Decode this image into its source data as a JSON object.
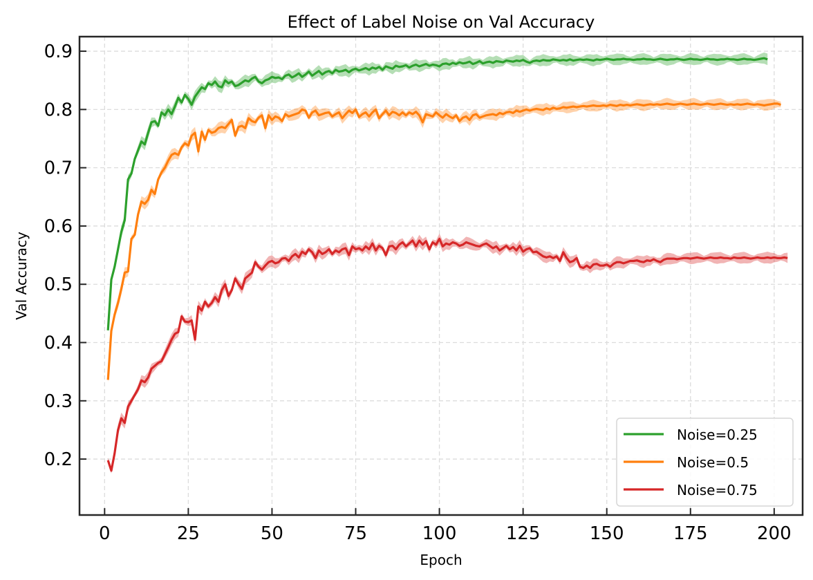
{
  "chart_data": {
    "type": "line",
    "title": "Effect of Label Noise on Val Accuracy",
    "xlabel": "Epoch",
    "ylabel": "Val Accuracy",
    "xlim": [
      -7.5,
      208.5
    ],
    "ylim": [
      0.104,
      0.925
    ],
    "xticks": [
      0,
      25,
      50,
      75,
      100,
      125,
      150,
      175,
      200
    ],
    "xtick_labels": [
      "0",
      "25",
      "50",
      "75",
      "100",
      "125",
      "150",
      "175",
      "200"
    ],
    "yticks": [
      0.2,
      0.3,
      0.4,
      0.5,
      0.6,
      0.7,
      0.8,
      0.9
    ],
    "ytick_labels": [
      "0.2",
      "0.3",
      "0.4",
      "0.5",
      "0.6",
      "0.7",
      "0.8",
      "0.9"
    ],
    "grid": true,
    "legend_position": "bottom-right",
    "x_start": 1,
    "x_step": 1,
    "series": [
      {
        "name": "Noise=0.25",
        "color": "#2ca02c",
        "values": [
          0.421,
          0.508,
          0.53,
          0.56,
          0.59,
          0.61,
          0.68,
          0.69,
          0.715,
          0.73,
          0.745,
          0.74,
          0.76,
          0.778,
          0.78,
          0.772,
          0.795,
          0.79,
          0.8,
          0.792,
          0.805,
          0.82,
          0.812,
          0.825,
          0.818,
          0.808,
          0.822,
          0.83,
          0.838,
          0.835,
          0.845,
          0.842,
          0.848,
          0.84,
          0.838,
          0.85,
          0.845,
          0.848,
          0.84,
          0.842,
          0.846,
          0.85,
          0.848,
          0.853,
          0.856,
          0.848,
          0.845,
          0.85,
          0.852,
          0.856,
          0.854,
          0.855,
          0.852,
          0.858,
          0.86,
          0.855,
          0.858,
          0.862,
          0.856,
          0.86,
          0.865,
          0.858,
          0.862,
          0.866,
          0.86,
          0.864,
          0.866,
          0.862,
          0.868,
          0.865,
          0.866,
          0.868,
          0.864,
          0.868,
          0.87,
          0.867,
          0.869,
          0.871,
          0.868,
          0.872,
          0.87,
          0.873,
          0.868,
          0.874,
          0.872,
          0.87,
          0.875,
          0.873,
          0.874,
          0.876,
          0.872,
          0.875,
          0.877,
          0.874,
          0.876,
          0.878,
          0.875,
          0.877,
          0.876,
          0.874,
          0.878,
          0.879,
          0.877,
          0.88,
          0.878,
          0.881,
          0.879,
          0.88,
          0.882,
          0.878,
          0.88,
          0.883,
          0.879,
          0.881,
          0.882,
          0.88,
          0.883,
          0.882,
          0.881,
          0.884,
          0.883,
          0.882,
          0.884,
          0.883,
          0.885,
          0.882,
          0.88,
          0.883,
          0.884,
          0.883,
          0.885,
          0.884,
          0.884,
          0.886,
          0.885,
          0.884,
          0.885,
          0.884,
          0.886,
          0.884,
          0.885,
          0.886,
          0.885,
          0.886,
          0.885,
          0.884,
          0.886,
          0.885,
          0.886,
          0.887,
          0.886,
          0.885,
          0.886,
          0.886,
          0.887,
          0.886,
          0.886,
          0.885,
          0.886,
          0.886,
          0.887,
          0.886,
          0.886,
          0.885,
          0.886,
          0.887,
          0.886,
          0.885,
          0.886,
          0.886,
          0.887,
          0.886,
          0.885,
          0.886,
          0.887,
          0.886,
          0.886,
          0.885,
          0.886,
          0.887,
          0.886,
          0.886,
          0.885,
          0.886,
          0.886,
          0.887,
          0.886,
          0.886,
          0.885,
          0.886,
          0.887,
          0.886,
          0.886,
          0.885,
          0.886,
          0.887,
          0.888,
          0.886
        ]
      },
      {
        "name": "Noise=0.5",
        "color": "#ff7f0e",
        "values": [
          0.336,
          0.42,
          0.448,
          0.468,
          0.492,
          0.52,
          0.522,
          0.578,
          0.585,
          0.62,
          0.642,
          0.638,
          0.645,
          0.662,
          0.655,
          0.68,
          0.692,
          0.7,
          0.712,
          0.722,
          0.725,
          0.722,
          0.735,
          0.742,
          0.738,
          0.755,
          0.76,
          0.728,
          0.762,
          0.748,
          0.765,
          0.76,
          0.762,
          0.768,
          0.77,
          0.768,
          0.775,
          0.782,
          0.755,
          0.77,
          0.772,
          0.768,
          0.785,
          0.78,
          0.778,
          0.786,
          0.79,
          0.768,
          0.79,
          0.782,
          0.788,
          0.786,
          0.78,
          0.792,
          0.788,
          0.79,
          0.792,
          0.794,
          0.8,
          0.798,
          0.786,
          0.795,
          0.798,
          0.79,
          0.792,
          0.794,
          0.795,
          0.788,
          0.792,
          0.795,
          0.785,
          0.792,
          0.798,
          0.794,
          0.8,
          0.787,
          0.792,
          0.795,
          0.788,
          0.795,
          0.8,
          0.785,
          0.792,
          0.798,
          0.79,
          0.796,
          0.794,
          0.79,
          0.795,
          0.79,
          0.795,
          0.792,
          0.796,
          0.79,
          0.778,
          0.792,
          0.79,
          0.788,
          0.795,
          0.79,
          0.786,
          0.792,
          0.788,
          0.785,
          0.79,
          0.78,
          0.786,
          0.788,
          0.782,
          0.79,
          0.792,
          0.786,
          0.788,
          0.79,
          0.791,
          0.792,
          0.79,
          0.794,
          0.792,
          0.795,
          0.796,
          0.794,
          0.798,
          0.796,
          0.798,
          0.8,
          0.798,
          0.8,
          0.801,
          0.8,
          0.799,
          0.802,
          0.8,
          0.803,
          0.801,
          0.802,
          0.804,
          0.803,
          0.804,
          0.805,
          0.804,
          0.805,
          0.806,
          0.805,
          0.806,
          0.807,
          0.806,
          0.806,
          0.807,
          0.806,
          0.808,
          0.807,
          0.806,
          0.808,
          0.807,
          0.808,
          0.807,
          0.808,
          0.809,
          0.808,
          0.807,
          0.808,
          0.809,
          0.808,
          0.809,
          0.808,
          0.809,
          0.81,
          0.809,
          0.808,
          0.809,
          0.81,
          0.809,
          0.808,
          0.809,
          0.81,
          0.809,
          0.808,
          0.809,
          0.81,
          0.809,
          0.808,
          0.809,
          0.81,
          0.809,
          0.808,
          0.809,
          0.808,
          0.809,
          0.808,
          0.809,
          0.81,
          0.809,
          0.808,
          0.809,
          0.808,
          0.807,
          0.808,
          0.809,
          0.81,
          0.81,
          0.808
        ]
      },
      {
        "name": "Noise=0.75",
        "color": "#d62728",
        "values": [
          0.198,
          0.18,
          0.21,
          0.25,
          0.27,
          0.262,
          0.29,
          0.3,
          0.31,
          0.32,
          0.335,
          0.332,
          0.34,
          0.355,
          0.36,
          0.365,
          0.368,
          0.38,
          0.392,
          0.405,
          0.415,
          0.418,
          0.445,
          0.436,
          0.435,
          0.438,
          0.405,
          0.462,
          0.455,
          0.47,
          0.462,
          0.468,
          0.478,
          0.47,
          0.49,
          0.5,
          0.48,
          0.49,
          0.51,
          0.5,
          0.492,
          0.51,
          0.515,
          0.52,
          0.538,
          0.53,
          0.525,
          0.532,
          0.538,
          0.54,
          0.536,
          0.538,
          0.544,
          0.545,
          0.54,
          0.548,
          0.552,
          0.546,
          0.556,
          0.552,
          0.56,
          0.555,
          0.545,
          0.558,
          0.552,
          0.555,
          0.56,
          0.552,
          0.558,
          0.555,
          0.56,
          0.562,
          0.55,
          0.565,
          0.56,
          0.562,
          0.558,
          0.565,
          0.56,
          0.57,
          0.558,
          0.566,
          0.562,
          0.55,
          0.565,
          0.566,
          0.56,
          0.568,
          0.572,
          0.565,
          0.57,
          0.575,
          0.565,
          0.575,
          0.568,
          0.574,
          0.56,
          0.572,
          0.568,
          0.578,
          0.565,
          0.57,
          0.568,
          0.572,
          0.57,
          0.566,
          0.568,
          0.572,
          0.57,
          0.568,
          0.566,
          0.565,
          0.568,
          0.57,
          0.566,
          0.562,
          0.565,
          0.558,
          0.562,
          0.566,
          0.56,
          0.564,
          0.558,
          0.566,
          0.556,
          0.56,
          0.562,
          0.555,
          0.556,
          0.552,
          0.548,
          0.546,
          0.548,
          0.545,
          0.548,
          0.54,
          0.555,
          0.545,
          0.538,
          0.54,
          0.545,
          0.53,
          0.528,
          0.532,
          0.528,
          0.534,
          0.535,
          0.532,
          0.532,
          0.534,
          0.53,
          0.535,
          0.538,
          0.538,
          0.536,
          0.538,
          0.54,
          0.54,
          0.541,
          0.539,
          0.538,
          0.541,
          0.54,
          0.543,
          0.54,
          0.538,
          0.542,
          0.544,
          0.544,
          0.544,
          0.543,
          0.544,
          0.545,
          0.545,
          0.544,
          0.545,
          0.546,
          0.545,
          0.544,
          0.545,
          0.546,
          0.545,
          0.545,
          0.546,
          0.545,
          0.545,
          0.544,
          0.546,
          0.545,
          0.545,
          0.546,
          0.545,
          0.544,
          0.545,
          0.546,
          0.545,
          0.545,
          0.546,
          0.545,
          0.546,
          0.545,
          0.545,
          0.546,
          0.545
        ]
      }
    ]
  }
}
